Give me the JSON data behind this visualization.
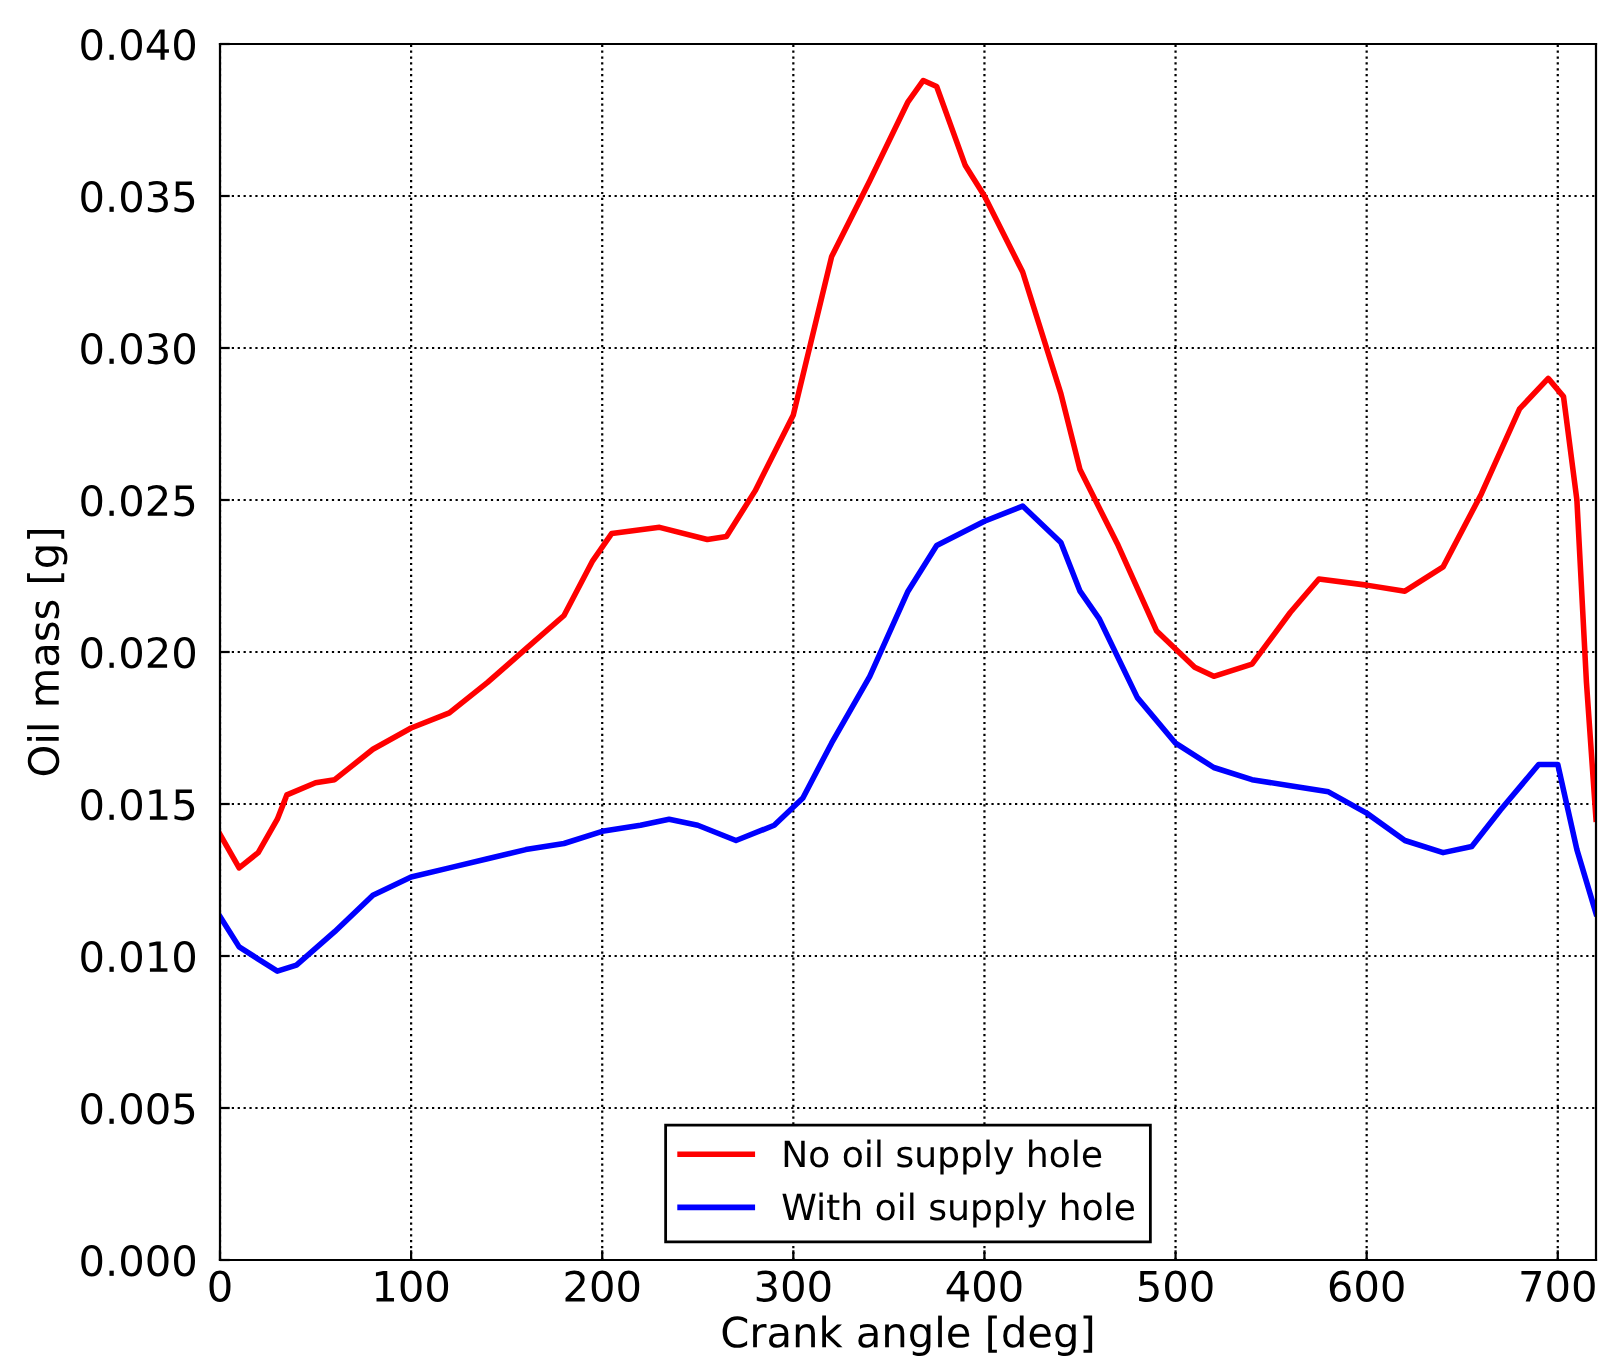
{
  "chart_data": {
    "type": "line",
    "xlabel": "Crank angle [deg]",
    "ylabel": "Oil mass [g]",
    "xlim": [
      0,
      720
    ],
    "xticks": [
      0,
      100,
      200,
      300,
      400,
      500,
      600,
      700
    ],
    "ylim": [
      0.0,
      0.04
    ],
    "yticks": [
      {
        "value": 0.0,
        "label": "0.000"
      },
      {
        "value": 0.005,
        "label": "0.005"
      },
      {
        "value": 0.01,
        "label": "0.010"
      },
      {
        "value": 0.015,
        "label": "0.015"
      },
      {
        "value": 0.02,
        "label": "0.020"
      },
      {
        "value": 0.025,
        "label": "0.025"
      },
      {
        "value": 0.03,
        "label": "0.030"
      },
      {
        "value": 0.035,
        "label": "0.035"
      },
      {
        "value": 0.04,
        "label": "0.040"
      }
    ],
    "grid": true,
    "legend": "bottom",
    "marker": "none",
    "line_style": "solid",
    "series": [
      {
        "name": "No oil supply hole",
        "color": "#ff0000",
        "x": [
          0,
          10,
          20,
          30,
          35,
          50,
          60,
          80,
          100,
          120,
          140,
          160,
          180,
          195,
          205,
          230,
          255,
          265,
          280,
          300,
          320,
          340,
          360,
          368,
          375,
          390,
          400,
          420,
          440,
          450,
          470,
          490,
          510,
          520,
          540,
          560,
          575,
          600,
          620,
          640,
          660,
          680,
          695,
          703,
          710,
          715,
          720
        ],
        "values": [
          0.014,
          0.0129,
          0.0134,
          0.0145,
          0.0153,
          0.0157,
          0.0158,
          0.0168,
          0.0175,
          0.018,
          0.019,
          0.0201,
          0.0212,
          0.023,
          0.0239,
          0.0241,
          0.0237,
          0.0238,
          0.0253,
          0.0278,
          0.033,
          0.0355,
          0.0381,
          0.0388,
          0.0386,
          0.036,
          0.035,
          0.0325,
          0.0285,
          0.026,
          0.0235,
          0.0207,
          0.0195,
          0.0192,
          0.0196,
          0.0213,
          0.0224,
          0.0222,
          0.022,
          0.0228,
          0.0252,
          0.028,
          0.029,
          0.0284,
          0.025,
          0.019,
          0.0145
        ]
      },
      {
        "name": "With oil supply hole",
        "color": "#0000ff",
        "x": [
          0,
          10,
          20,
          30,
          40,
          60,
          80,
          100,
          120,
          140,
          160,
          180,
          200,
          220,
          235,
          250,
          270,
          290,
          305,
          320,
          340,
          360,
          375,
          400,
          420,
          440,
          450,
          460,
          480,
          500,
          520,
          540,
          560,
          580,
          600,
          620,
          640,
          655,
          670,
          690,
          700,
          710,
          720
        ],
        "values": [
          0.0113,
          0.0103,
          0.0099,
          0.0095,
          0.0097,
          0.0108,
          0.012,
          0.0126,
          0.0129,
          0.0132,
          0.0135,
          0.0137,
          0.0141,
          0.0143,
          0.0145,
          0.0143,
          0.0138,
          0.0143,
          0.0152,
          0.017,
          0.0192,
          0.022,
          0.0235,
          0.0243,
          0.0248,
          0.0236,
          0.022,
          0.0211,
          0.0185,
          0.017,
          0.0162,
          0.0158,
          0.0156,
          0.0154,
          0.0147,
          0.0138,
          0.0134,
          0.0136,
          0.0148,
          0.0163,
          0.0163,
          0.0135,
          0.0114
        ]
      }
    ]
  }
}
